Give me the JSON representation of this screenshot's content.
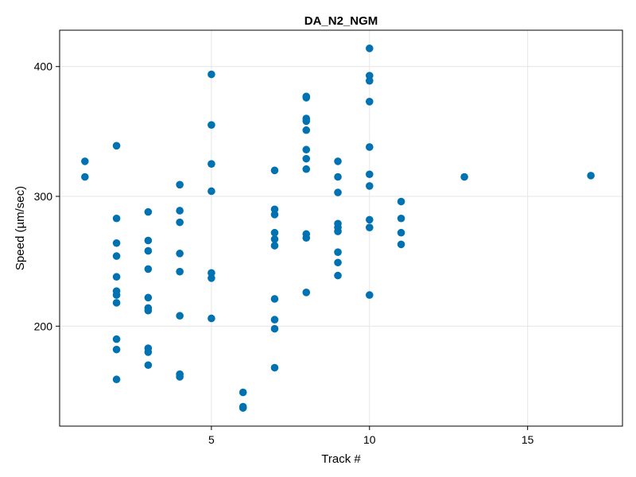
{
  "chart_data": {
    "type": "scatter",
    "title": "DA_N2_NGM",
    "xlabel": "Track #",
    "ylabel": "Speed (µm/sec)",
    "xlim": [
      0.2,
      18
    ],
    "ylim": [
      123,
      428
    ],
    "xticks": [
      5,
      10,
      15
    ],
    "yticks": [
      200,
      300,
      400
    ],
    "grid": true,
    "marker_color": "#0072b2",
    "series": [
      {
        "points": [
          [
            1,
            327
          ],
          [
            1,
            315
          ],
          [
            2,
            339
          ],
          [
            2,
            283
          ],
          [
            2,
            264
          ],
          [
            2,
            254
          ],
          [
            2,
            238
          ],
          [
            2,
            227
          ],
          [
            2,
            224
          ],
          [
            2,
            218
          ],
          [
            2,
            190
          ],
          [
            2,
            182
          ],
          [
            2,
            159
          ],
          [
            3,
            288
          ],
          [
            3,
            266
          ],
          [
            3,
            258
          ],
          [
            3,
            244
          ],
          [
            3,
            222
          ],
          [
            3,
            214
          ],
          [
            3,
            212
          ],
          [
            3,
            183
          ],
          [
            3,
            180
          ],
          [
            3,
            170
          ],
          [
            4,
            309
          ],
          [
            4,
            289
          ],
          [
            4,
            280
          ],
          [
            4,
            256
          ],
          [
            4,
            242
          ],
          [
            4,
            208
          ],
          [
            4,
            163
          ],
          [
            4,
            161
          ],
          [
            5,
            394
          ],
          [
            5,
            355
          ],
          [
            5,
            325
          ],
          [
            5,
            304
          ],
          [
            5,
            241
          ],
          [
            5,
            237
          ],
          [
            5,
            206
          ],
          [
            6,
            149
          ],
          [
            6,
            138
          ],
          [
            6,
            137
          ],
          [
            7,
            320
          ],
          [
            7,
            290
          ],
          [
            7,
            286
          ],
          [
            7,
            272
          ],
          [
            7,
            267
          ],
          [
            7,
            262
          ],
          [
            7,
            221
          ],
          [
            7,
            205
          ],
          [
            7,
            198
          ],
          [
            7,
            168
          ],
          [
            8,
            377
          ],
          [
            8,
            376
          ],
          [
            8,
            360
          ],
          [
            8,
            358
          ],
          [
            8,
            351
          ],
          [
            8,
            336
          ],
          [
            8,
            329
          ],
          [
            8,
            321
          ],
          [
            8,
            271
          ],
          [
            8,
            268
          ],
          [
            8,
            226
          ],
          [
            9,
            327
          ],
          [
            9,
            315
          ],
          [
            9,
            303
          ],
          [
            9,
            279
          ],
          [
            9,
            276
          ],
          [
            9,
            273
          ],
          [
            9,
            257
          ],
          [
            9,
            249
          ],
          [
            9,
            239
          ],
          [
            10,
            414
          ],
          [
            10,
            393
          ],
          [
            10,
            389
          ],
          [
            10,
            373
          ],
          [
            10,
            338
          ],
          [
            10,
            317
          ],
          [
            10,
            308
          ],
          [
            10,
            282
          ],
          [
            10,
            276
          ],
          [
            10,
            224
          ],
          [
            11,
            296
          ],
          [
            11,
            283
          ],
          [
            11,
            272
          ],
          [
            11,
            263
          ],
          [
            13,
            315
          ],
          [
            17,
            316
          ]
        ]
      }
    ]
  }
}
